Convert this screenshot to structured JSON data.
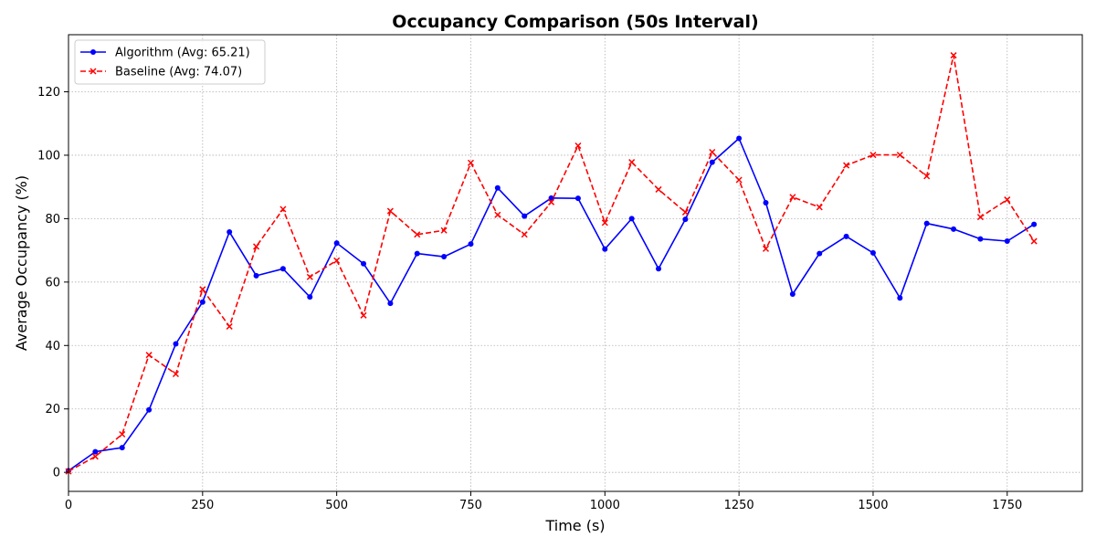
{
  "chart_data": {
    "type": "line",
    "title": "Occupancy Comparison (50s Interval)",
    "xlabel": "Time (s)",
    "ylabel": "Average Occupancy (%)",
    "xlim": [
      0,
      1890
    ],
    "ylim": [
      -6,
      138
    ],
    "xticks": [
      0,
      250,
      500,
      750,
      1000,
      1250,
      1500,
      1750
    ],
    "yticks": [
      0,
      20,
      40,
      60,
      80,
      100,
      120
    ],
    "grid": true,
    "legend_position": "top-left",
    "x": [
      0,
      50,
      100,
      150,
      200,
      250,
      300,
      350,
      400,
      450,
      500,
      550,
      600,
      650,
      700,
      750,
      800,
      850,
      900,
      950,
      1000,
      1050,
      1100,
      1150,
      1200,
      1250,
      1300,
      1350,
      1400,
      1450,
      1500,
      1550,
      1600,
      1650,
      1700,
      1750,
      1800
    ],
    "series": [
      {
        "name": "Algorithm (Avg: 65.21)",
        "color": "#0000ff",
        "line_style": "solid",
        "marker": "circle",
        "values": [
          0.5,
          6.5,
          7.8,
          19.7,
          40.5,
          53.7,
          75.8,
          62.0,
          64.2,
          55.3,
          72.3,
          65.8,
          53.3,
          69.0,
          68.0,
          72.0,
          89.7,
          80.8,
          86.5,
          86.4,
          70.4,
          80.0,
          64.2,
          79.8,
          97.8,
          105.3,
          85.0,
          56.2,
          69.0,
          74.4,
          69.2,
          55.0,
          78.5,
          76.7,
          73.6,
          72.9,
          78.2
        ]
      },
      {
        "name": "Baseline (Avg: 74.07)",
        "color": "#ff0000",
        "line_style": "dashed",
        "marker": "x",
        "values": [
          0.3,
          5.0,
          12.0,
          37.0,
          31.0,
          57.7,
          46.0,
          71.2,
          83.0,
          61.6,
          66.8,
          49.5,
          82.4,
          75.0,
          76.3,
          97.6,
          81.2,
          75.0,
          85.2,
          103.0,
          78.7,
          97.8,
          89.2,
          82.0,
          101.0,
          92.2,
          70.5,
          86.8,
          83.6,
          96.8,
          100.1,
          100.1,
          93.4,
          131.5,
          80.5,
          86.0,
          72.9
        ]
      }
    ]
  }
}
